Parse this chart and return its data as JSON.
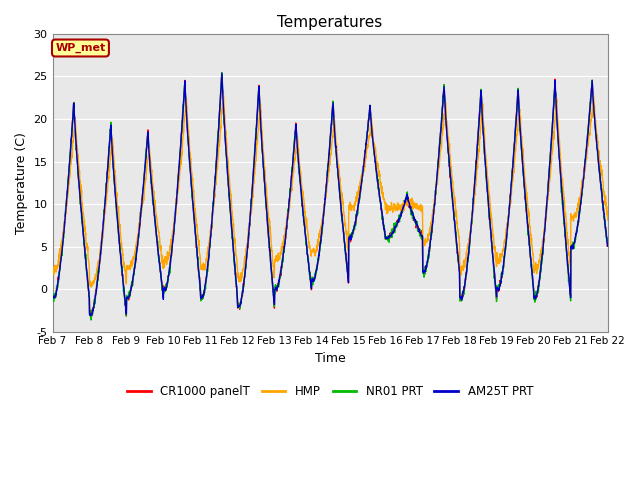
{
  "title": "Temperatures",
  "xlabel": "Time",
  "ylabel": "Temperature (C)",
  "ylim": [
    -5,
    30
  ],
  "yticks": [
    -5,
    0,
    5,
    10,
    15,
    20,
    25,
    30
  ],
  "xtick_labels": [
    "Feb 7",
    "Feb 8",
    "Feb 9",
    "Feb 10",
    "Feb 11",
    "Feb 12",
    "Feb 13",
    "Feb 14",
    "Feb 15",
    "Feb 16",
    "Feb 17",
    "Feb 18",
    "Feb 19",
    "Feb 20",
    "Feb 21",
    "Feb 22"
  ],
  "colors": {
    "CR1000 panelT": "#FF0000",
    "HMP": "#FFA500",
    "NR01 PRT": "#00BB00",
    "AM25T PRT": "#0000CC"
  },
  "legend_label": "WP_met",
  "legend_box_color": "#FFFF99",
  "legend_box_border": "#AA0000",
  "plot_bg_color": "#E8E8E8",
  "n_days": 15,
  "points_per_day": 144,
  "grid_color": "#FFFFFF",
  "daily_peaks": [
    22,
    19.5,
    18.5,
    24.5,
    25.5,
    24,
    19.5,
    22,
    21.5,
    11,
    24,
    23.5,
    23.5,
    24.5,
    24.5
  ],
  "daily_mins": [
    -1,
    -3,
    -1,
    0,
    -1,
    -2,
    0,
    1,
    6,
    6,
    2,
    -1,
    0,
    -1,
    5
  ],
  "hmp_lag_factor": 0.15
}
